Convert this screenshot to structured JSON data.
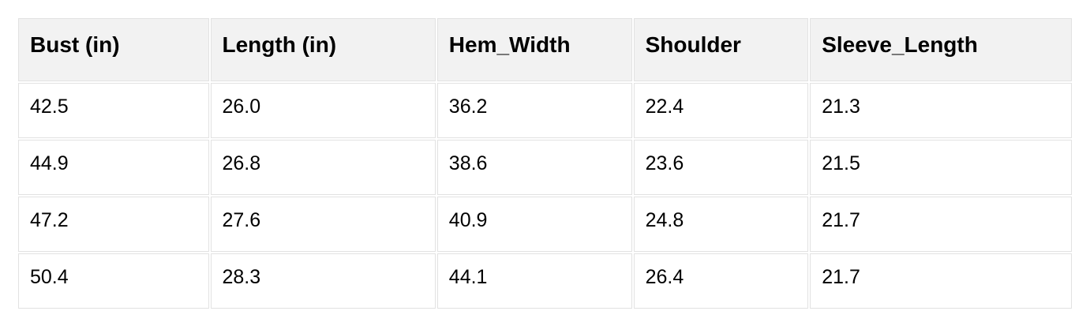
{
  "table": {
    "headers": [
      "Bust (in)",
      "Length (in)",
      "Hem_Width",
      "Shoulder",
      "Sleeve_Length"
    ],
    "rows": [
      [
        "42.5",
        "26.0",
        "36.2",
        "22.4",
        "21.3"
      ],
      [
        "44.9",
        "26.8",
        "38.6",
        "23.6",
        "21.5"
      ],
      [
        "47.2",
        "27.6",
        "40.9",
        "24.8",
        "21.7"
      ],
      [
        "50.4",
        "28.3",
        "44.1",
        "26.4",
        "21.7"
      ]
    ],
    "colors": {
      "header_bg": "#f2f2f2",
      "border": "#e2e2e2",
      "text": "#000000",
      "page_bg": "#ffffff"
    }
  }
}
